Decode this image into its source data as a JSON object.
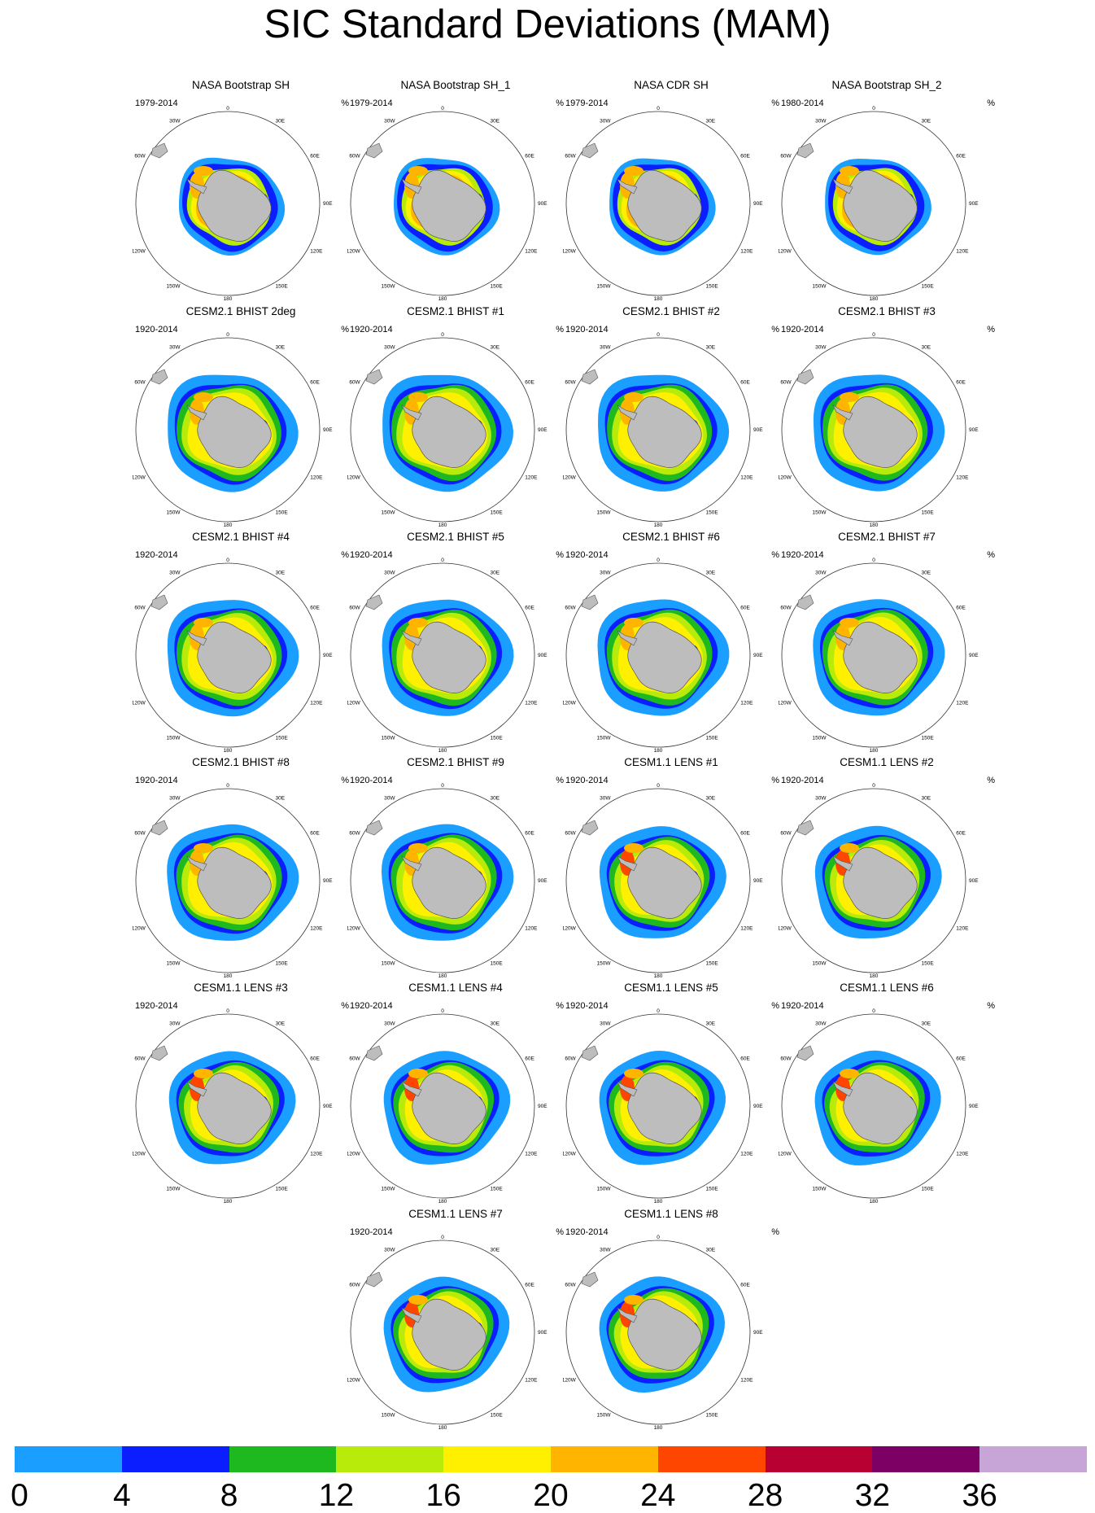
{
  "title": "SIC Standard Deviations (MAM)",
  "unit": "%",
  "lon_labels": {
    "l0": "0",
    "l30e": "30E",
    "l60e": "60E",
    "l90e": "90E",
    "l120e": "120E",
    "l150e": "150E",
    "l180": "180",
    "l150w": "150W",
    "l120w": "120W",
    "l90w": "90W",
    "l60w": "60W",
    "l30w": "30W"
  },
  "panels": [
    {
      "title": "NASA Bootstrap SH",
      "years": "1979-2014"
    },
    {
      "title": "NASA Bootstrap SH_1",
      "years": "1979-2014"
    },
    {
      "title": "NASA CDR SH",
      "years": "1979-2014"
    },
    {
      "title": "NASA Bootstrap SH_2",
      "years": "1980-2014"
    },
    {
      "title": "CESM2.1 BHIST 2deg",
      "years": "1920-2014"
    },
    {
      "title": "CESM2.1 BHIST #1",
      "years": "1920-2014"
    },
    {
      "title": "CESM2.1 BHIST #2",
      "years": "1920-2014"
    },
    {
      "title": "CESM2.1 BHIST #3",
      "years": "1920-2014"
    },
    {
      "title": "CESM2.1 BHIST #4",
      "years": "1920-2014"
    },
    {
      "title": "CESM2.1 BHIST #5",
      "years": "1920-2014"
    },
    {
      "title": "CESM2.1 BHIST #6",
      "years": "1920-2014"
    },
    {
      "title": "CESM2.1 BHIST #7",
      "years": "1920-2014"
    },
    {
      "title": "CESM2.1 BHIST #8",
      "years": "1920-2014"
    },
    {
      "title": "CESM2.1 BHIST #9",
      "years": "1920-2014"
    },
    {
      "title": "CESM1.1 LENS #1",
      "years": "1920-2014"
    },
    {
      "title": "CESM1.1 LENS #2",
      "years": "1920-2014"
    },
    {
      "title": "CESM1.1 LENS #3",
      "years": "1920-2014"
    },
    {
      "title": "CESM1.1 LENS #4",
      "years": "1920-2014"
    },
    {
      "title": "CESM1.1 LENS #5",
      "years": "1920-2014"
    },
    {
      "title": "CESM1.1 LENS #6",
      "years": "1920-2014"
    },
    {
      "title": "CESM1.1 LENS #7",
      "years": "1920-2014"
    },
    {
      "title": "CESM1.1 LENS #8",
      "years": "1920-2014"
    }
  ],
  "colorbar": {
    "colors": [
      "#1a9eff",
      "#0a1eff",
      "#1eb91e",
      "#b9eb0a",
      "#fff000",
      "#ffb400",
      "#ff4600",
      "#b90032",
      "#7d0064",
      "#c8a5d7"
    ],
    "ticks": [
      "0",
      "4",
      "8",
      "12",
      "16",
      "20",
      "24",
      "28",
      "32",
      "36"
    ]
  },
  "map_colors": {
    "land": "#bdbdbd",
    "coast": "#555555",
    "frame": "#333333"
  }
}
